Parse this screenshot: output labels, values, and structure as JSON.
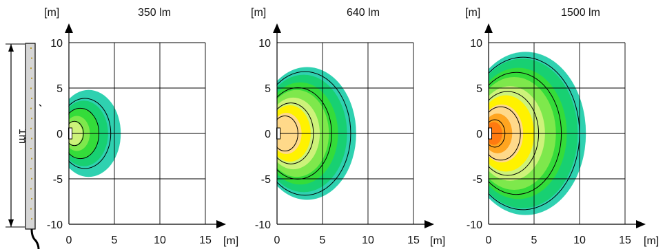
{
  "lamp_strip": {
    "length_label": "1m"
  },
  "panels": [
    {
      "title": "350  lm",
      "y_unit": "[m]",
      "x_unit": "[m]",
      "x_ticks": [
        "0",
        "5",
        "10",
        "15"
      ],
      "y_ticks": [
        "10",
        "5",
        "0",
        "-5",
        "-10"
      ],
      "iso_reach_m": [
        5.7,
        4.3,
        3.3,
        2.3,
        1.5
      ],
      "isolines": [
        4.6,
        3.3,
        1.6
      ]
    },
    {
      "title": "640  lm",
      "y_unit": "[m]",
      "x_unit": "[m]",
      "x_ticks": [
        "0",
        "5",
        "10",
        "15"
      ],
      "y_ticks": [
        "10",
        "5",
        "0",
        "-5",
        "-10"
      ],
      "iso_reach_m": [
        8.7,
        7.7,
        6.7,
        5.7,
        4.7,
        3.7,
        2.7
      ],
      "isolines": [
        8.1,
        6.0,
        4.0,
        2.3
      ]
    },
    {
      "title": "1500  lm",
      "y_unit": "[m]",
      "x_unit": "[m]",
      "x_ticks": [
        "0",
        "5",
        "10",
        "15"
      ],
      "y_ticks": [
        "10",
        "5",
        "0",
        "-5",
        "-10"
      ],
      "iso_reach_m": [
        10.7,
        9.8,
        8.6,
        7.4,
        6.2,
        5.0,
        3.8,
        2.6,
        1.5
      ],
      "isolines": [
        10.0,
        8.0,
        5.5,
        3.5,
        1.8
      ]
    }
  ],
  "colors": {
    "iso_zones": [
      "#2fd1b0",
      "#18d072",
      "#34dc3a",
      "#7ee84c",
      "#cdf27a",
      "#fff200",
      "#ffd98a",
      "#ffa520",
      "#ff7a10",
      "#ff1a00"
    ]
  }
}
